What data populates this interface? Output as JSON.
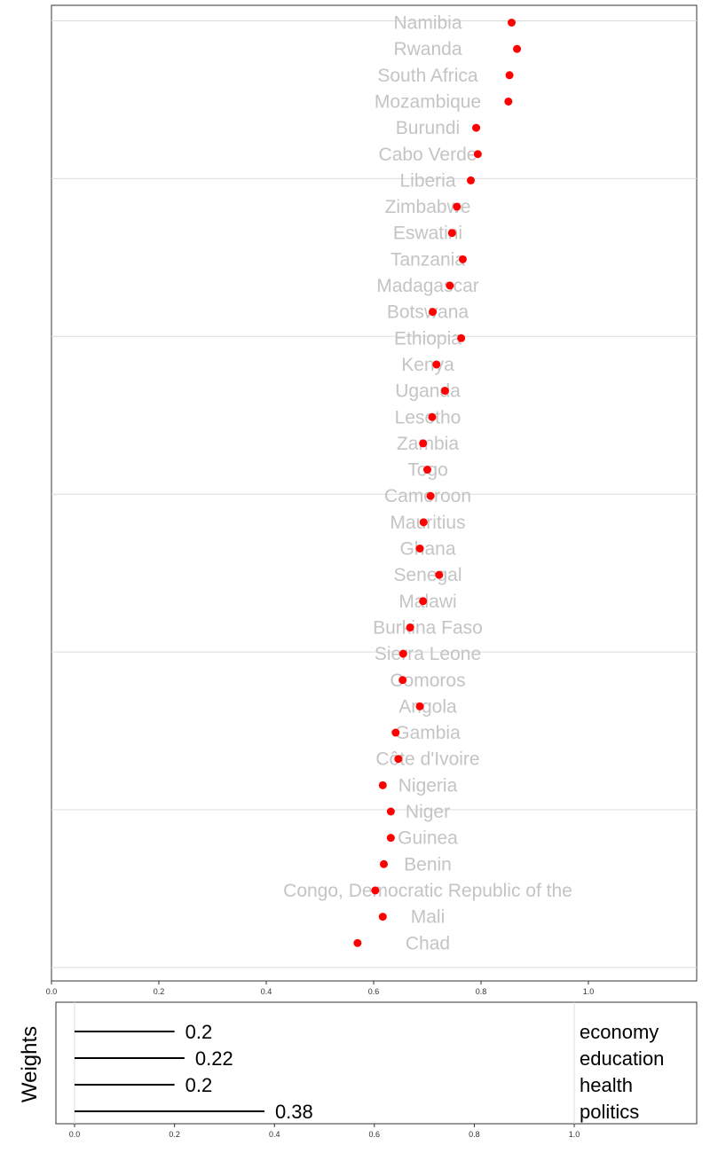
{
  "chart_data": [
    {
      "type": "scatter",
      "title": "",
      "xlabel": "",
      "ylabel": "",
      "xlim": [
        0,
        1.2
      ],
      "x_ticks": [
        "0.0",
        "0.2",
        "0.4",
        "0.6",
        "0.8",
        "1.0"
      ],
      "grid": "horizontal",
      "marker_color": "#ff0000",
      "label_color": "#c4c4c4",
      "points": [
        {
          "label": "Namibia",
          "x": 0.857
        },
        {
          "label": "Rwanda",
          "x": 0.867
        },
        {
          "label": "South Africa",
          "x": 0.853
        },
        {
          "label": "Mozambique",
          "x": 0.851
        },
        {
          "label": "Burundi",
          "x": 0.791
        },
        {
          "label": "Cabo Verde",
          "x": 0.794
        },
        {
          "label": "Liberia",
          "x": 0.781
        },
        {
          "label": "Zimbabwe",
          "x": 0.755
        },
        {
          "label": "Eswatini",
          "x": 0.746
        },
        {
          "label": "Tanzania",
          "x": 0.766
        },
        {
          "label": "Madagascar",
          "x": 0.742
        },
        {
          "label": "Botswana",
          "x": 0.71
        },
        {
          "label": "Ethiopia",
          "x": 0.763
        },
        {
          "label": "Kenya",
          "x": 0.717
        },
        {
          "label": "Uganda",
          "x": 0.733
        },
        {
          "label": "Lesotho",
          "x": 0.709
        },
        {
          "label": "Zambia",
          "x": 0.692
        },
        {
          "label": "Togo",
          "x": 0.7
        },
        {
          "label": "Cameroon",
          "x": 0.706
        },
        {
          "label": "Mauritius",
          "x": 0.693
        },
        {
          "label": "Ghana",
          "x": 0.686
        },
        {
          "label": "Senegal",
          "x": 0.722
        },
        {
          "label": "Malawi",
          "x": 0.692
        },
        {
          "label": "Burkina Faso",
          "x": 0.668
        },
        {
          "label": "Sierra Leone",
          "x": 0.655
        },
        {
          "label": "Comoros",
          "x": 0.654
        },
        {
          "label": "Angola",
          "x": 0.686
        },
        {
          "label": "Gambia",
          "x": 0.641
        },
        {
          "label": "Côte d'Ivoire",
          "x": 0.646
        },
        {
          "label": "Nigeria",
          "x": 0.617
        },
        {
          "label": "Niger",
          "x": 0.632
        },
        {
          "label": "Guinea",
          "x": 0.632
        },
        {
          "label": "Benin",
          "x": 0.619
        },
        {
          "label": "Congo, Democratic Republic of the",
          "x": 0.603
        },
        {
          "label": "Mali",
          "x": 0.617
        },
        {
          "label": "Chad",
          "x": 0.57
        }
      ]
    },
    {
      "type": "bar",
      "orientation": "horizontal",
      "ylabel": "Weights",
      "xlim": [
        0,
        1.0
      ],
      "x_ticks": [
        "0.0",
        "0.2",
        "0.4",
        "0.6",
        "0.8",
        "1.0"
      ],
      "bar_color": "#000000",
      "categories": [
        "economy",
        "education",
        "health",
        "politics"
      ],
      "values": [
        0.2,
        0.22,
        0.2,
        0.38
      ],
      "value_labels": [
        "0.2",
        "0.22",
        "0.2",
        "0.38"
      ]
    }
  ]
}
